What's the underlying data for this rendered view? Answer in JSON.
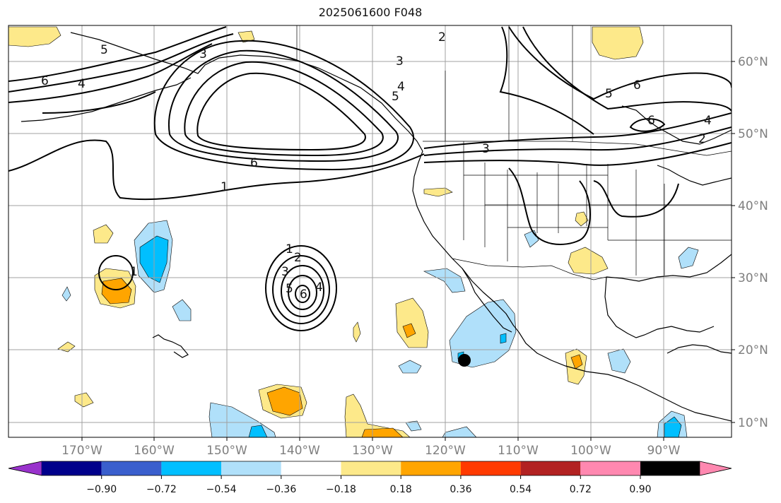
{
  "title": "2025061600 F048",
  "map": {
    "lat_labels": [
      "60°N",
      "50°N",
      "40°N",
      "30°N",
      "20°N",
      "10°N"
    ],
    "lon_labels": [
      "170°W",
      "160°W",
      "150°W",
      "140°W",
      "130°W",
      "120°W",
      "110°W",
      "100°W",
      "90°W"
    ],
    "contour_labels": [
      "6",
      "4",
      "3",
      "3",
      "5",
      "4",
      "5",
      "2",
      "6",
      "6",
      "4",
      "2",
      "3",
      "6",
      "1",
      "1",
      "2",
      "3",
      "4",
      "5",
      "6",
      "5",
      "1"
    ]
  },
  "colorbar": {
    "tick_labels": [
      "−0.90",
      "−0.72",
      "−0.54",
      "−0.36",
      "−0.18",
      "0.18",
      "0.36",
      "0.54",
      "0.72",
      "0.90"
    ],
    "colors": [
      "#9932cc",
      "#00008b",
      "#3a5fcd",
      "#00bfff",
      "#b0e0fa",
      "#ffffff",
      "#fde98a",
      "#ffa500",
      "#ff3a00",
      "#b22222",
      "#ff88b0"
    ]
  },
  "colors": {
    "positive_light": "#fde98a",
    "positive_mid": "#ffa500",
    "negative_light": "#b0e0fa",
    "negative_mid": "#00bfff",
    "grid": "#a0a0a0",
    "contour": "#000000"
  }
}
